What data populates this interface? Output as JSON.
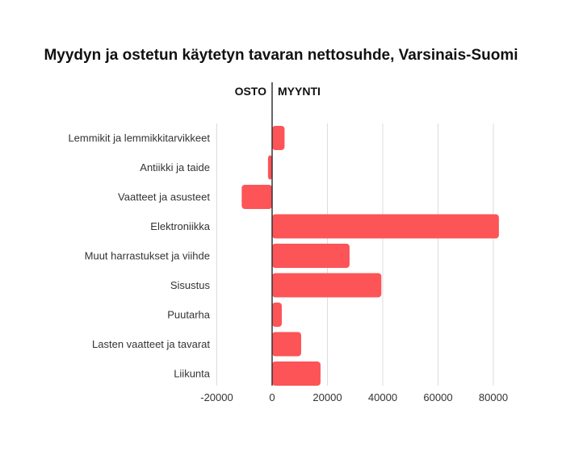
{
  "chart_data": {
    "type": "bar",
    "orientation": "horizontal",
    "title": "Myydyn ja ostetun käytetyn tavaran nettosuhde, Varsinais-Suomi",
    "side_labels": {
      "negative": "OSTO",
      "positive": "MYYNTI"
    },
    "categories": [
      "Lemmikit ja lemmikkitarvikkeet",
      "Antiikki ja taide",
      "Vaatteet ja asusteet",
      "Elektroniikka",
      "Muut harrastukset ja viihde",
      "Sisustus",
      "Puutarha",
      "Lasten vaatteet ja tavarat",
      "Liikunta"
    ],
    "values": [
      4500,
      -1500,
      -11000,
      82000,
      28000,
      39500,
      3500,
      10500,
      17500
    ],
    "xlim": [
      -20000,
      80000
    ],
    "xticks": [
      -20000,
      0,
      20000,
      40000,
      60000,
      80000
    ],
    "xtick_labels": [
      "-20000",
      "0",
      "20000",
      "40000",
      "60000",
      "80000"
    ],
    "bar_color": "#fc5457",
    "grid": true
  }
}
